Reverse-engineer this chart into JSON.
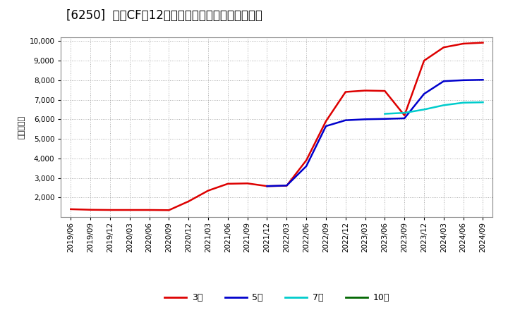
{
  "title": "[6250]  営業CFの12か月移動合計の標準偏差の推移",
  "ylabel": "（百万円）",
  "background_color": "#ffffff",
  "plot_bg_color": "#ffffff",
  "grid_color": "#aaaaaa",
  "ylim": [
    1000,
    10200
  ],
  "yticks": [
    2000,
    3000,
    4000,
    5000,
    6000,
    7000,
    8000,
    9000,
    10000
  ],
  "series": {
    "3年": {
      "color": "#dd0000",
      "dates": [
        "2019/06",
        "2019/09",
        "2019/12",
        "2020/03",
        "2020/06",
        "2020/09",
        "2020/12",
        "2021/03",
        "2021/06",
        "2021/09",
        "2021/12",
        "2022/03",
        "2022/06",
        "2022/09",
        "2022/12",
        "2023/03",
        "2023/06",
        "2023/09",
        "2023/12",
        "2024/03",
        "2024/06",
        "2024/09"
      ],
      "values": [
        1400,
        1370,
        1360,
        1360,
        1360,
        1350,
        1800,
        2350,
        2700,
        2720,
        2580,
        2600,
        3900,
        5900,
        7400,
        7470,
        7450,
        6200,
        9000,
        9680,
        9870,
        9920
      ]
    },
    "5年": {
      "color": "#0000cc",
      "dates": [
        "2021/12",
        "2022/03",
        "2022/06",
        "2022/09",
        "2022/12",
        "2023/03",
        "2023/06",
        "2023/09",
        "2023/12",
        "2024/03",
        "2024/06",
        "2024/09"
      ],
      "values": [
        2580,
        2610,
        3600,
        5650,
        5950,
        6000,
        6020,
        6050,
        7300,
        7950,
        8000,
        8020
      ]
    },
    "7年": {
      "color": "#00cccc",
      "dates": [
        "2023/06",
        "2023/09",
        "2023/12",
        "2024/03",
        "2024/06",
        "2024/09"
      ],
      "values": [
        6280,
        6330,
        6500,
        6720,
        6850,
        6870
      ]
    },
    "10年": {
      "color": "#006600",
      "dates": [],
      "values": []
    }
  },
  "xtick_labels": [
    "2019/06",
    "2019/09",
    "2019/12",
    "2020/03",
    "2020/06",
    "2020/09",
    "2020/12",
    "2021/03",
    "2021/06",
    "2021/09",
    "2021/12",
    "2022/03",
    "2022/06",
    "2022/09",
    "2022/12",
    "2023/03",
    "2023/06",
    "2023/09",
    "2023/12",
    "2024/03",
    "2024/06",
    "2024/09"
  ],
  "legend_labels": [
    "3年",
    "5年",
    "7年",
    "10年"
  ],
  "legend_colors": [
    "#dd0000",
    "#0000cc",
    "#00cccc",
    "#006600"
  ],
  "title_fontsize": 12,
  "tick_fontsize": 7.5,
  "ylabel_fontsize": 8,
  "legend_fontsize": 9,
  "linewidth": 1.8
}
